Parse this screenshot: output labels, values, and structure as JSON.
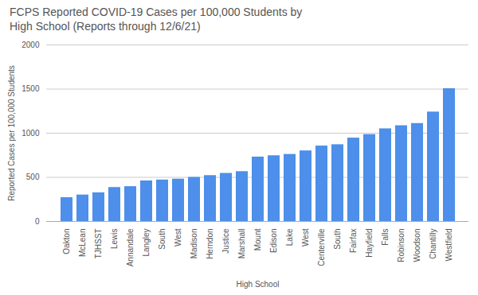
{
  "chart_data": {
    "type": "bar",
    "title": "FCPS Reported COVID-19 Cases per 100,000 Students by\nHigh School (Reports through 12/6/21)",
    "xlabel": "High School",
    "ylabel": "Reported Cases per 100,000 Students",
    "categories": [
      "Oakton",
      "McLean",
      "TJHSST",
      "Lewis",
      "Annandale",
      "Langley",
      "South",
      "West",
      "Madison",
      "Herndon",
      "Justice",
      "Marshall",
      "Mount",
      "Edison",
      "Lake",
      "West",
      "Centerville",
      "South",
      "Fairfax",
      "Hayfield",
      "Falls",
      "Robinson",
      "Woodson",
      "Chantilly",
      "Westfield"
    ],
    "values": [
      270,
      300,
      325,
      385,
      395,
      460,
      470,
      480,
      500,
      520,
      545,
      565,
      730,
      745,
      760,
      800,
      855,
      870,
      945,
      985,
      1050,
      1085,
      1110,
      1240,
      1505
    ],
    "color": "#4d8fea",
    "ylim": [
      0,
      2000
    ],
    "yticks": [
      0,
      500,
      1000,
      1500,
      2000
    ],
    "grid": true
  }
}
